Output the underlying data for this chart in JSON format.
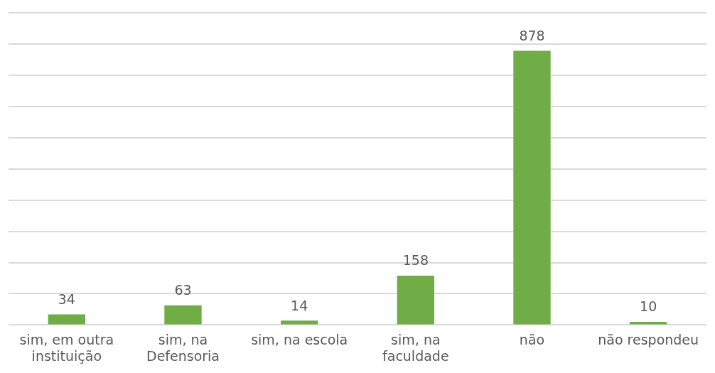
{
  "chart_data": {
    "type": "bar",
    "categories": [
      "sim, em outra instituição",
      "sim, na Defensoria",
      "sim, na escola",
      "sim, na faculdade",
      "não",
      "não respondeu"
    ],
    "values": [
      34,
      63,
      14,
      158,
      878,
      10
    ],
    "color": "#70ad47",
    "data_labels": true,
    "ylim": [
      0,
      1000
    ],
    "yticks": [
      {
        "value": 0,
        "label": null
      },
      {
        "value": 100,
        "label": null
      },
      {
        "value": 200,
        "label": null
      },
      {
        "value": 300,
        "label": null
      },
      {
        "value": 400,
        "label": null
      },
      {
        "value": 500,
        "label": null
      },
      {
        "value": 600,
        "label": null
      },
      {
        "value": 700,
        "label": null
      },
      {
        "value": 800,
        "label": null
      },
      {
        "value": 900,
        "label": null
      },
      {
        "value": 1000,
        "label": null
      }
    ],
    "grid": "y",
    "tick_labels": "x",
    "legend": false
  }
}
